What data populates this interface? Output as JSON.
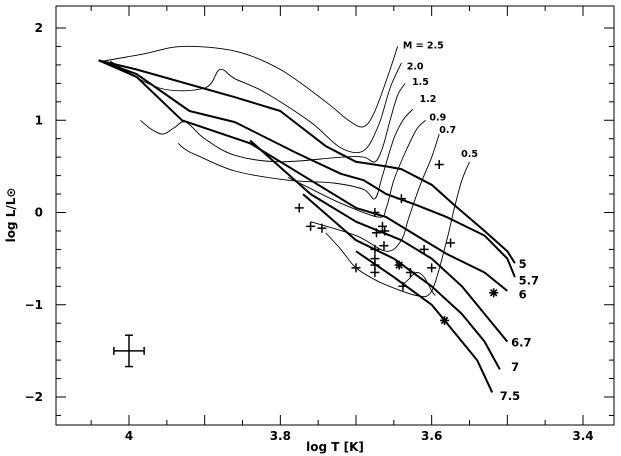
{
  "chart_data": {
    "type": "line",
    "title": "",
    "xlabel": "log T [K]",
    "ylabel": "log L/L⊙",
    "xlim": [
      4.09,
      3.35
    ],
    "ylim": [
      -2.3,
      2.3
    ],
    "x_ticks": [
      4,
      3.8,
      3.6,
      3.4
    ],
    "x_tick_labels": [
      "4",
      "3.8",
      "3.6",
      "3.4"
    ],
    "y_ticks": [
      2,
      1,
      0,
      -1,
      -2
    ],
    "y_tick_labels": [
      "2",
      "1",
      "0",
      "−1",
      "−2"
    ],
    "grid": false,
    "tracks": [
      {
        "name": "M = 2.5",
        "points": [
          [
            4.035,
            1.64
          ],
          [
            3.98,
            1.72
          ],
          [
            3.93,
            1.8
          ],
          [
            3.86,
            1.75
          ],
          [
            3.8,
            1.55
          ],
          [
            3.74,
            1.2
          ],
          [
            3.71,
            1.0
          ],
          [
            3.69,
            0.93
          ],
          [
            3.675,
            1.1
          ],
          [
            3.655,
            1.55
          ],
          [
            3.645,
            1.8
          ]
        ]
      },
      {
        "name": "2.0",
        "points": [
          [
            4.025,
            1.64
          ],
          [
            3.96,
            1.35
          ],
          [
            3.9,
            1.35
          ],
          [
            3.88,
            1.55
          ],
          [
            3.86,
            1.45
          ],
          [
            3.82,
            1.3
          ],
          [
            3.76,
            0.98
          ],
          [
            3.72,
            0.7
          ],
          [
            3.69,
            0.67
          ],
          [
            3.67,
            0.95
          ],
          [
            3.655,
            1.35
          ],
          [
            3.64,
            1.62
          ]
        ]
      },
      {
        "name": "1.5",
        "points": [
          [
            3.985,
            1.0
          ],
          [
            3.97,
            0.9
          ],
          [
            3.955,
            0.85
          ],
          [
            3.94,
            0.92
          ],
          [
            3.925,
            0.98
          ],
          [
            3.9,
            0.8
          ],
          [
            3.86,
            0.62
          ],
          [
            3.8,
            0.55
          ],
          [
            3.72,
            0.6
          ],
          [
            3.69,
            0.6
          ],
          [
            3.675,
            0.55
          ],
          [
            3.665,
            0.7
          ],
          [
            3.655,
            1.0
          ],
          [
            3.645,
            1.27
          ],
          [
            3.635,
            1.4
          ]
        ]
      },
      {
        "name": "1.2",
        "points": [
          [
            3.935,
            0.75
          ],
          [
            3.925,
            0.68
          ],
          [
            3.91,
            0.62
          ],
          [
            3.86,
            0.45
          ],
          [
            3.79,
            0.35
          ],
          [
            3.73,
            0.32
          ],
          [
            3.69,
            0.25
          ],
          [
            3.675,
            0.15
          ],
          [
            3.665,
            0.4
          ],
          [
            3.65,
            0.8
          ],
          [
            3.638,
            1.0
          ],
          [
            3.625,
            1.12
          ]
        ]
      },
      {
        "name": "0.9",
        "points": [
          [
            3.79,
            0.38
          ],
          [
            3.77,
            0.3
          ],
          [
            3.72,
            0.1
          ],
          [
            3.67,
            -0.05
          ],
          [
            3.66,
            0.05
          ],
          [
            3.65,
            0.35
          ],
          [
            3.635,
            0.65
          ],
          [
            3.62,
            0.9
          ],
          [
            3.608,
            1.0
          ]
        ]
      },
      {
        "name": "0.7",
        "points": [
          [
            3.76,
            -0.1
          ],
          [
            3.7,
            -0.25
          ],
          [
            3.66,
            -0.42
          ],
          [
            3.64,
            -0.3
          ],
          [
            3.63,
            -0.05
          ],
          [
            3.615,
            0.3
          ],
          [
            3.6,
            0.6
          ],
          [
            3.59,
            0.85
          ]
        ]
      },
      {
        "name": "0.5",
        "points": [
          [
            3.74,
            -0.22
          ],
          [
            3.72,
            -0.4
          ],
          [
            3.7,
            -0.6
          ],
          [
            3.67,
            -0.75
          ],
          [
            3.64,
            -0.85
          ],
          [
            3.62,
            -0.9
          ],
          [
            3.605,
            -0.9
          ],
          [
            3.595,
            -0.75
          ],
          [
            3.58,
            -0.3
          ],
          [
            3.57,
            0.05
          ],
          [
            3.56,
            0.35
          ],
          [
            3.55,
            0.55
          ]
        ]
      },
      {
        "name": "",
        "points": [
          [
            3.64,
            -0.8
          ],
          [
            3.63,
            -0.72
          ],
          [
            3.62,
            -0.65
          ],
          [
            3.61,
            -0.7
          ],
          [
            3.6,
            -0.85
          ],
          [
            3.595,
            -0.9
          ]
        ]
      }
    ],
    "isochrones": [
      {
        "name": "5",
        "points": [
          [
            4.04,
            1.65
          ],
          [
            3.99,
            1.55
          ],
          [
            3.86,
            1.25
          ],
          [
            3.8,
            1.1
          ],
          [
            3.74,
            0.72
          ],
          [
            3.7,
            0.55
          ],
          [
            3.66,
            0.5
          ],
          [
            3.64,
            0.47
          ],
          [
            3.6,
            0.3
          ],
          [
            3.57,
            0.08
          ],
          [
            3.53,
            -0.2
          ],
          [
            3.5,
            -0.42
          ],
          [
            3.49,
            -0.55
          ]
        ]
      },
      {
        "name": "5.7",
        "points": [
          [
            4.04,
            1.65
          ],
          [
            3.99,
            1.5
          ],
          [
            3.92,
            1.1
          ],
          [
            3.86,
            0.98
          ],
          [
            3.78,
            0.65
          ],
          [
            3.72,
            0.42
          ],
          [
            3.69,
            0.35
          ],
          [
            3.66,
            0.2
          ],
          [
            3.62,
            0.08
          ],
          [
            3.58,
            -0.05
          ],
          [
            3.53,
            -0.25
          ],
          [
            3.5,
            -0.5
          ],
          [
            3.49,
            -0.7
          ]
        ]
      },
      {
        "name": "6",
        "points": [
          [
            4.04,
            1.65
          ],
          [
            3.99,
            1.47
          ],
          [
            3.93,
            1.0
          ],
          [
            3.84,
            0.75
          ],
          [
            3.76,
            0.35
          ],
          [
            3.7,
            0.05
          ],
          [
            3.66,
            -0.05
          ],
          [
            3.62,
            -0.25
          ],
          [
            3.58,
            -0.45
          ],
          [
            3.53,
            -0.65
          ],
          [
            3.5,
            -0.85
          ]
        ]
      },
      {
        "name": "6.7",
        "points": [
          [
            3.84,
            0.78
          ],
          [
            3.76,
            0.2
          ],
          [
            3.7,
            -0.1
          ],
          [
            3.64,
            -0.3
          ],
          [
            3.6,
            -0.5
          ],
          [
            3.56,
            -0.8
          ],
          [
            3.53,
            -1.1
          ],
          [
            3.5,
            -1.4
          ]
        ]
      },
      {
        "name": "7",
        "points": [
          [
            3.77,
            0.2
          ],
          [
            3.7,
            -0.3
          ],
          [
            3.65,
            -0.5
          ],
          [
            3.6,
            -0.8
          ],
          [
            3.56,
            -1.1
          ],
          [
            3.53,
            -1.4
          ],
          [
            3.51,
            -1.7
          ]
        ]
      },
      {
        "name": "7.5",
        "points": [
          [
            3.7,
            -0.42
          ],
          [
            3.65,
            -0.7
          ],
          [
            3.6,
            -1.0
          ],
          [
            3.57,
            -1.3
          ],
          [
            3.54,
            -1.6
          ],
          [
            3.52,
            -1.95
          ]
        ]
      }
    ],
    "track_label_positions": [
      {
        "label": "M = 2.5",
        "x": 3.638,
        "y": 1.78
      },
      {
        "label": "2.0",
        "x": 3.633,
        "y": 1.55
      },
      {
        "label": "1.5",
        "x": 3.626,
        "y": 1.38
      },
      {
        "label": "1.2",
        "x": 3.616,
        "y": 1.2
      },
      {
        "label": "0.9",
        "x": 3.603,
        "y": 1.0
      },
      {
        "label": "0.7",
        "x": 3.59,
        "y": 0.86
      },
      {
        "label": "0.5",
        "x": 3.561,
        "y": 0.6
      }
    ],
    "isochrone_label_positions": [
      {
        "label": "5",
        "x": 3.485,
        "y": -0.6
      },
      {
        "label": "5.7",
        "x": 3.485,
        "y": -0.78
      },
      {
        "label": "6",
        "x": 3.485,
        "y": -0.93
      },
      {
        "label": "6.7",
        "x": 3.495,
        "y": -1.45
      },
      {
        "label": "7",
        "x": 3.495,
        "y": -1.72
      },
      {
        "label": "7.5",
        "x": 3.51,
        "y": -2.03
      }
    ],
    "plus_points": [
      [
        3.775,
        0.05
      ],
      [
        3.76,
        -0.15
      ],
      [
        3.745,
        -0.17
      ],
      [
        3.675,
        0.0
      ],
      [
        3.673,
        -0.22
      ],
      [
        3.665,
        -0.15
      ],
      [
        3.662,
        -0.2
      ],
      [
        3.675,
        -0.4
      ],
      [
        3.663,
        -0.36
      ],
      [
        3.675,
        -0.5
      ],
      [
        3.675,
        -0.57
      ],
      [
        3.675,
        -0.65
      ],
      [
        3.7,
        -0.6
      ],
      [
        3.64,
        0.15
      ],
      [
        3.61,
        -0.4
      ],
      [
        3.6,
        -0.6
      ],
      [
        3.575,
        -0.33
      ],
      [
        3.628,
        -0.65
      ],
      [
        3.638,
        -0.8
      ],
      [
        3.59,
        0.52
      ]
    ],
    "asterisk_points": [
      [
        3.643,
        -0.57
      ],
      [
        3.583,
        -1.17
      ],
      [
        3.518,
        -0.87
      ]
    ],
    "error_bar": {
      "x": 4.0,
      "y": -1.5,
      "xerr": 0.02,
      "yerr": 0.17
    }
  }
}
